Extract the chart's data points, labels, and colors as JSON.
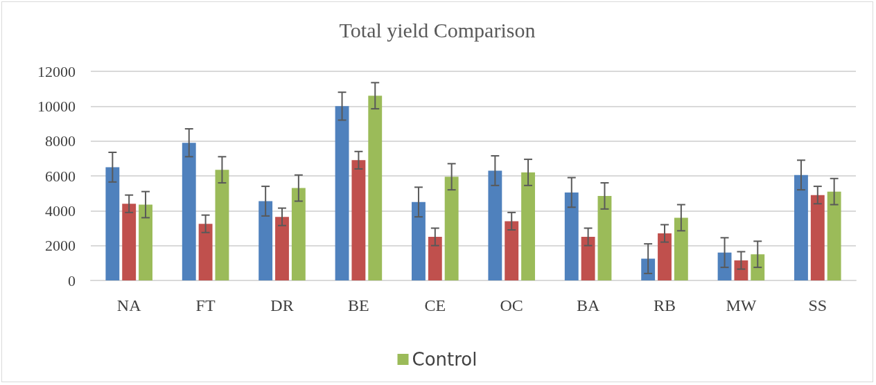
{
  "chart_data": {
    "type": "bar",
    "title": "Total yield Comparison",
    "categories": [
      "NA",
      "FT",
      "DR",
      "BE",
      "CE",
      "OC",
      "BA",
      "RB",
      "MW",
      "SS"
    ],
    "series": [
      {
        "color": "#4f81bd",
        "values": [
          6500,
          7900,
          4550,
          10000,
          4500,
          6300,
          5050,
          1250,
          1600,
          6050
        ],
        "errors": [
          850,
          800,
          850,
          800,
          850,
          850,
          850,
          850,
          850,
          850
        ]
      },
      {
        "color": "#c0504d",
        "values": [
          4400,
          3250,
          3650,
          6900,
          2500,
          3400,
          2500,
          2700,
          1150,
          4900
        ],
        "errors": [
          500,
          500,
          500,
          500,
          500,
          500,
          500,
          500,
          500,
          500
        ]
      },
      {
        "name": "Control",
        "color": "#9bbb59",
        "values": [
          4350,
          6350,
          5300,
          10600,
          5950,
          6200,
          4850,
          3600,
          1500,
          5100
        ],
        "errors": [
          750,
          750,
          750,
          750,
          750,
          750,
          750,
          750,
          750,
          750
        ]
      }
    ],
    "ylim": [
      0,
      12000
    ],
    "yticks": [
      0,
      2000,
      4000,
      6000,
      8000,
      10000,
      12000
    ],
    "grid": "y",
    "legend": "bottom"
  }
}
